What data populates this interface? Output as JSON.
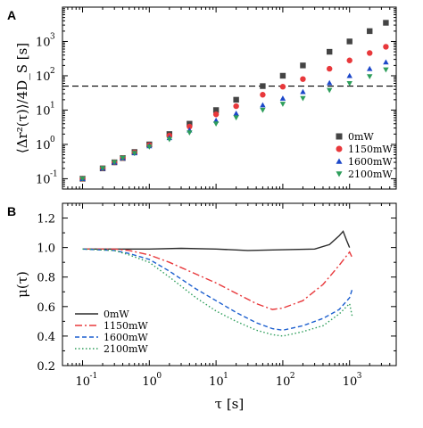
{
  "chart_data": [
    {
      "panel": "A",
      "type": "scatter",
      "title": "",
      "xlabel": "τ [s]",
      "ylabel": "⟨Δr²(τ)⟩/4D_S [s]",
      "xscale": "log",
      "yscale": "log",
      "xlim": [
        0.05,
        5000
      ],
      "ylim": [
        0.05,
        10000
      ],
      "x_tick_labels": [
        {
          "base": "10",
          "exp": "-1"
        },
        {
          "base": "10",
          "exp": "0"
        },
        {
          "base": "10",
          "exp": "1"
        },
        {
          "base": "10",
          "exp": "2"
        },
        {
          "base": "10",
          "exp": "3"
        }
      ],
      "y_tick_labels": [
        {
          "base": "10",
          "exp": "-1"
        },
        {
          "base": "10",
          "exp": "0"
        },
        {
          "base": "10",
          "exp": "1"
        },
        {
          "base": "10",
          "exp": "2"
        },
        {
          "base": "10",
          "exp": "3"
        }
      ],
      "reference_line": {
        "y": 50,
        "style": "dashed"
      },
      "legend_position": "bottom-right",
      "grid": false,
      "series": [
        {
          "name": "0mW",
          "color": "#444444",
          "marker": "square",
          "points": [
            [
              0.1,
              0.1
            ],
            [
              0.2,
              0.2
            ],
            [
              0.3,
              0.3
            ],
            [
              0.4,
              0.4
            ],
            [
              0.6,
              0.6
            ],
            [
              1,
              1
            ],
            [
              2,
              2
            ],
            [
              4,
              4
            ],
            [
              10,
              10
            ],
            [
              20,
              20
            ],
            [
              50,
              50
            ],
            [
              100,
              100
            ],
            [
              200,
              200
            ],
            [
              500,
              500
            ],
            [
              1000,
              1000
            ],
            [
              2000,
              2000
            ],
            [
              3500,
              3500
            ]
          ]
        },
        {
          "name": "1150mW",
          "color": "#e8383b",
          "marker": "circle",
          "points": [
            [
              0.1,
              0.1
            ],
            [
              0.2,
              0.2
            ],
            [
              0.3,
              0.3
            ],
            [
              0.4,
              0.4
            ],
            [
              0.6,
              0.58
            ],
            [
              1,
              0.95
            ],
            [
              2,
              1.8
            ],
            [
              4,
              3.3
            ],
            [
              10,
              7.5
            ],
            [
              20,
              13
            ],
            [
              50,
              28
            ],
            [
              100,
              48
            ],
            [
              200,
              80
            ],
            [
              500,
              160
            ],
            [
              1000,
              280
            ],
            [
              2000,
              460
            ],
            [
              3500,
              700
            ]
          ]
        },
        {
          "name": "1600mW",
          "color": "#1c47c9",
          "marker": "triangle",
          "points": [
            [
              0.1,
              0.1
            ],
            [
              0.2,
              0.2
            ],
            [
              0.3,
              0.3
            ],
            [
              0.4,
              0.4
            ],
            [
              0.6,
              0.56
            ],
            [
              1,
              0.9
            ],
            [
              2,
              1.55
            ],
            [
              4,
              2.6
            ],
            [
              10,
              5
            ],
            [
              20,
              8
            ],
            [
              50,
              14
            ],
            [
              100,
              22
            ],
            [
              200,
              34
            ],
            [
              500,
              62
            ],
            [
              1000,
              100
            ],
            [
              2000,
              160
            ],
            [
              3500,
              250
            ]
          ]
        },
        {
          "name": "2100mW",
          "color": "#2e9e5b",
          "marker": "triangle-down",
          "points": [
            [
              0.1,
              0.1
            ],
            [
              0.2,
              0.2
            ],
            [
              0.3,
              0.3
            ],
            [
              0.4,
              0.4
            ],
            [
              0.6,
              0.55
            ],
            [
              1,
              0.85
            ],
            [
              2,
              1.4
            ],
            [
              4,
              2.2
            ],
            [
              10,
              4
            ],
            [
              20,
              6
            ],
            [
              50,
              10
            ],
            [
              100,
              15
            ],
            [
              200,
              22
            ],
            [
              500,
              38
            ],
            [
              1000,
              60
            ],
            [
              2000,
              95
            ],
            [
              3500,
              150
            ]
          ]
        }
      ]
    },
    {
      "panel": "B",
      "type": "line",
      "title": "",
      "xlabel": "τ [s]",
      "ylabel": "μ(τ)",
      "xscale": "log",
      "yscale": "linear",
      "xlim": [
        0.05,
        5000
      ],
      "ylim": [
        0.2,
        1.3
      ],
      "x_tick_labels": [
        {
          "base": "10",
          "exp": "-1"
        },
        {
          "base": "10",
          "exp": "0"
        },
        {
          "base": "10",
          "exp": "1"
        },
        {
          "base": "10",
          "exp": "2"
        },
        {
          "base": "10",
          "exp": "3"
        }
      ],
      "y_ticks": [
        "0.2",
        "0.4",
        "0.6",
        "0.8",
        "1.0",
        "1.2"
      ],
      "legend_position": "bottom-left",
      "grid": false,
      "series": [
        {
          "name": "0mW",
          "color": "#2b2b2b",
          "dash": "solid",
          "points": [
            [
              0.1,
              0.99
            ],
            [
              0.3,
              0.99
            ],
            [
              1,
              0.99
            ],
            [
              3,
              0.995
            ],
            [
              10,
              0.99
            ],
            [
              30,
              0.98
            ],
            [
              100,
              0.985
            ],
            [
              300,
              0.99
            ],
            [
              500,
              1.02
            ],
            [
              700,
              1.08
            ],
            [
              800,
              1.11
            ],
            [
              900,
              1.05
            ],
            [
              1000,
              1.0
            ]
          ]
        },
        {
          "name": "1150mW",
          "color": "#e8383b",
          "dash": "dashdot",
          "points": [
            [
              0.1,
              0.99
            ],
            [
              0.3,
              0.99
            ],
            [
              0.5,
              0.98
            ],
            [
              1,
              0.95
            ],
            [
              2,
              0.9
            ],
            [
              5,
              0.82
            ],
            [
              10,
              0.76
            ],
            [
              20,
              0.69
            ],
            [
              40,
              0.62
            ],
            [
              70,
              0.58
            ],
            [
              100,
              0.59
            ],
            [
              200,
              0.64
            ],
            [
              400,
              0.75
            ],
            [
              700,
              0.88
            ],
            [
              1000,
              0.97
            ],
            [
              1100,
              0.93
            ]
          ]
        },
        {
          "name": "1600mW",
          "color": "#1c5fcf",
          "dash": "dashed",
          "points": [
            [
              0.1,
              0.99
            ],
            [
              0.3,
              0.98
            ],
            [
              0.5,
              0.96
            ],
            [
              1,
              0.92
            ],
            [
              2,
              0.84
            ],
            [
              5,
              0.72
            ],
            [
              10,
              0.64
            ],
            [
              20,
              0.56
            ],
            [
              40,
              0.49
            ],
            [
              70,
              0.45
            ],
            [
              100,
              0.44
            ],
            [
              200,
              0.47
            ],
            [
              400,
              0.52
            ],
            [
              700,
              0.58
            ],
            [
              1000,
              0.66
            ],
            [
              1100,
              0.72
            ]
          ]
        },
        {
          "name": "2100mW",
          "color": "#2e9e5b",
          "dash": "dotted",
          "points": [
            [
              0.1,
              0.99
            ],
            [
              0.3,
              0.98
            ],
            [
              0.5,
              0.95
            ],
            [
              1,
              0.9
            ],
            [
              2,
              0.8
            ],
            [
              5,
              0.66
            ],
            [
              10,
              0.57
            ],
            [
              20,
              0.5
            ],
            [
              40,
              0.44
            ],
            [
              70,
              0.41
            ],
            [
              100,
              0.4
            ],
            [
              200,
              0.43
            ],
            [
              400,
              0.47
            ],
            [
              700,
              0.55
            ],
            [
              1000,
              0.62
            ],
            [
              1100,
              0.53
            ]
          ]
        }
      ]
    }
  ]
}
